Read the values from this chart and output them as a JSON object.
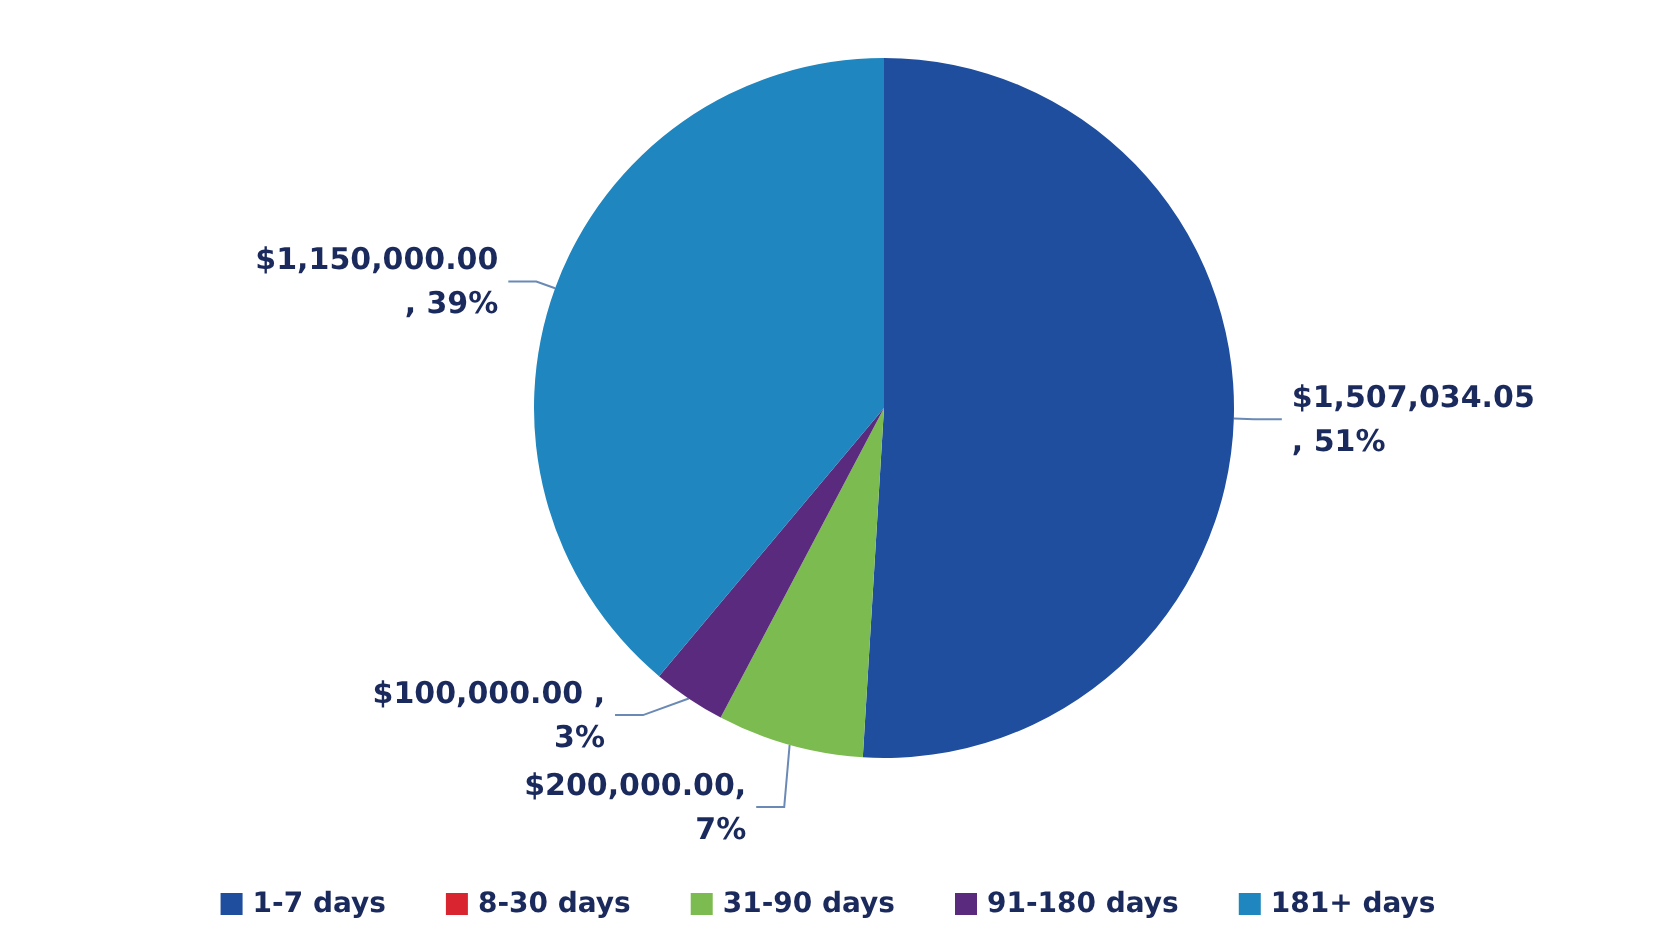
{
  "chart_data": {
    "type": "pie",
    "categories": [
      "1-7 days",
      "8-30 days",
      "31-90 days",
      "91-180 days",
      "181+ days"
    ],
    "values": [
      1507034.05,
      0,
      200000,
      100000,
      1150000
    ],
    "colors": [
      "#1f4e9e",
      "#d9252f",
      "#7cbb4f",
      "#5a2a7e",
      "#1f86bf"
    ],
    "value_labels": [
      "$1,507,034.05\n, 51%",
      null,
      "$200,000.00,\n7%",
      "$100,000.00 ,\n3%",
      "$1,150,000.00\n, 39%"
    ],
    "legend": "bottom"
  }
}
